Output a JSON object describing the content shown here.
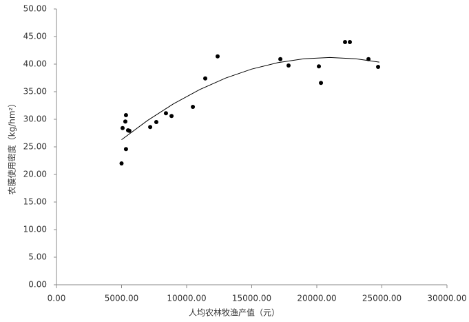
{
  "chart_data": {
    "type": "scatter",
    "x_label": "人均农林牧渔产值（元）",
    "y_label": "农膜使用密度（kg/hm²）",
    "series": [
      {
        "color": "#000000",
        "x": [
          5000,
          5080,
          5340,
          5290,
          5340,
          5500,
          5600,
          7200,
          7670,
          8410,
          8840,
          10480,
          11430,
          12380,
          17200,
          17830,
          20160,
          20320,
          22170,
          22540,
          23970,
          24710
        ],
        "values": [
          22.0,
          28.4,
          30.75,
          29.6,
          24.6,
          28.0,
          27.9,
          28.6,
          29.5,
          31.1,
          30.6,
          32.25,
          37.4,
          41.4,
          40.9,
          39.75,
          39.6,
          36.6,
          44.0,
          44.0,
          40.9,
          39.5
        ]
      }
    ],
    "trendline": {
      "color": "#000000",
      "x": [
        5000,
        7000,
        9000,
        11000,
        13000,
        15000,
        17000,
        19000,
        21000,
        23000,
        24800
      ],
      "values": [
        26.3,
        29.79,
        32.82,
        35.38,
        37.48,
        39.1,
        40.27,
        40.97,
        41.2,
        40.97,
        40.36
      ]
    },
    "xlim": [
      0,
      30000
    ],
    "xticks": [
      {
        "value": 0,
        "label": "0.00"
      },
      {
        "value": 5000,
        "label": "5000.00"
      },
      {
        "value": 10000,
        "label": "10000.00"
      },
      {
        "value": 15000,
        "label": "15000.00"
      },
      {
        "value": 20000,
        "label": "20000.00"
      },
      {
        "value": 25000,
        "label": "25000.00"
      },
      {
        "value": 30000,
        "label": "30000.00"
      }
    ],
    "ylim": [
      0,
      50
    ],
    "yticks": [
      {
        "value": 0,
        "label": "0.00"
      },
      {
        "value": 5,
        "label": "5.00"
      },
      {
        "value": 10,
        "label": "10.00"
      },
      {
        "value": 15,
        "label": "15.00"
      },
      {
        "value": 20,
        "label": "20.00"
      },
      {
        "value": 25,
        "label": "25.00"
      },
      {
        "value": 30,
        "label": "30.00"
      },
      {
        "value": 35,
        "label": "35.00"
      },
      {
        "value": 40,
        "label": "40.00"
      },
      {
        "value": 45,
        "label": "45.00"
      },
      {
        "value": 50,
        "label": "50.00"
      }
    ]
  }
}
